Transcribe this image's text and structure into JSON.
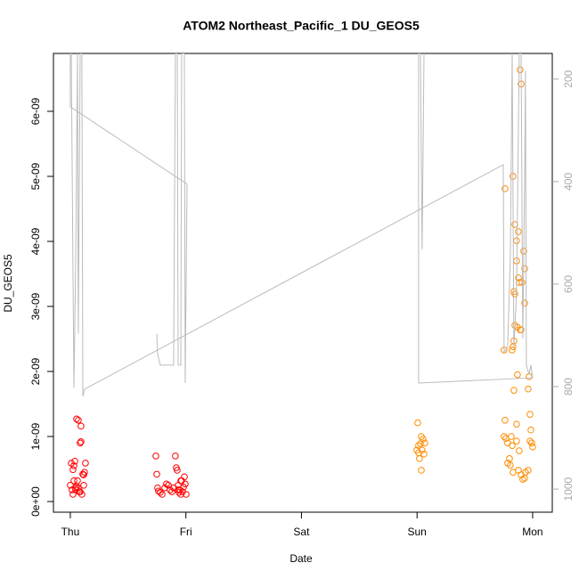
{
  "chart_data": {
    "type": "scatter",
    "title": "ATOM2 Northeast_Pacific_1 DU_GEOS5",
    "x_label": "Date",
    "y_label": "DU_GEOS5",
    "xlim": [
      -0.146,
      4.17
    ],
    "ylim": [
      -1.64e-10,
      6.89e-09
    ],
    "y2lim": [
      1045,
      150
    ],
    "xticks": [
      {
        "value": 0,
        "label": "Thu"
      },
      {
        "value": 1,
        "label": "Fri"
      },
      {
        "value": 2,
        "label": "Sat"
      },
      {
        "value": 3,
        "label": "Sun"
      },
      {
        "value": 4,
        "label": "Mon"
      }
    ],
    "yticks": [
      {
        "value": 0,
        "label": "0e+00"
      },
      {
        "value": 1e-09,
        "label": "1e-09"
      },
      {
        "value": 2e-09,
        "label": "2e-09"
      },
      {
        "value": 3e-09,
        "label": "3e-09"
      },
      {
        "value": 4e-09,
        "label": "4e-09"
      },
      {
        "value": 5e-09,
        "label": "5e-09"
      },
      {
        "value": 6e-09,
        "label": "6e-09"
      }
    ],
    "y2ticks": [
      200,
      400,
      600,
      800,
      1000
    ],
    "y2color": "#aaaaaa",
    "series": [
      {
        "mode": "points",
        "color": "#ff0000",
        "x": [
          0.0,
          0.008,
          0.015,
          0.023,
          0.031,
          0.039,
          0.046,
          0.054,
          0.062,
          0.069,
          0.077,
          0.085,
          0.092,
          0.1,
          0.108,
          0.116,
          0.123,
          0.131,
          0.046,
          0.054,
          0.069,
          0.031,
          0.023,
          0.085,
          0.092,
          0.116,
          0.74,
          0.748,
          0.755,
          0.763,
          0.778,
          0.794,
          0.817,
          0.832,
          0.848,
          0.863,
          0.879,
          0.894,
          0.909,
          0.917,
          0.925,
          0.933,
          0.94,
          0.948,
          0.956,
          0.963,
          0.971,
          0.979,
          0.987,
          0.994,
          1.002,
          0.933,
          0.956
        ],
        "values": [
          2.5e-10,
          5.9e-10,
          1.8e-10,
          1.1e-10,
          5.5e-10,
          6.2e-10,
          2.1e-10,
          1.27e-09,
          3.2e-10,
          1.25e-09,
          1.5e-10,
          9e-10,
          1.16e-09,
          1.1e-10,
          4.2e-10,
          2.5e-10,
          4.5e-10,
          5.9e-10,
          1.8e-10,
          2.3e-10,
          2.1e-10,
          3.2e-10,
          4.9e-10,
          1.5e-10,
          9.2e-10,
          4.1e-10,
          7e-10,
          4.2e-10,
          2.1e-10,
          1.6e-10,
          1.4e-10,
          1.1e-10,
          2.1e-10,
          2.7e-10,
          2.5e-10,
          1.8e-10,
          1.5e-10,
          2.1e-10,
          7e-10,
          5.2e-10,
          4.8e-10,
          2.5e-10,
          1.4e-10,
          1.8e-10,
          1.1e-10,
          3.2e-10,
          1.5e-10,
          2.2e-10,
          3.8e-10,
          2.7e-10,
          1.1e-10,
          1.8e-10,
          3.2e-10
        ]
      },
      {
        "mode": "points",
        "color": "#ff8c00",
        "x": [
          2.998,
          3.006,
          3.013,
          3.021,
          3.029,
          3.037,
          3.044,
          3.052,
          3.06,
          3.067,
          3.013,
          3.037,
          3.761,
          3.83,
          3.846,
          3.861,
          3.877,
          3.892,
          3.9,
          3.923,
          3.931,
          3.861,
          3.877,
          3.884,
          3.908,
          3.838,
          3.846,
          3.931,
          3.846,
          3.869,
          3.892,
          3.9,
          3.753,
          3.823,
          3.838,
          3.83,
          3.869,
          3.969,
          3.838,
          3.961,
          3.977,
          3.761,
          3.861,
          3.985,
          3.769,
          3.784,
          3.861,
          3.992,
          3.823,
          3.884,
          4.0,
          3.8,
          3.784,
          3.807,
          3.83,
          3.877,
          3.9,
          3.915,
          3.938,
          3.931,
          3.961,
          3.977,
          3.815,
          3.753
        ],
        "values": [
          7.9e-10,
          1.21e-09,
          8.6e-10,
          6.6e-10,
          8.9e-10,
          4.8e-10,
          7.9e-10,
          9.6e-10,
          7.3e-10,
          9e-10,
          7.5e-10,
          1e-09,
          4.81e-09,
          5e-09,
          4.26e-09,
          4.01e-09,
          4.15e-09,
          6.64e-09,
          6.42e-09,
          3.85e-09,
          3.58e-09,
          3.7e-09,
          3.44e-09,
          3.37e-09,
          3.37e-09,
          3.23e-09,
          3.19e-09,
          3.05e-09,
          2.71e-09,
          2.68e-09,
          2.64e-09,
          2.64e-09,
          2.33e-09,
          2.33e-09,
          2.47e-09,
          2.38e-09,
          1.95e-09,
          1.92e-09,
          1.71e-09,
          1.73e-09,
          1.34e-09,
          1.25e-09,
          1.19e-09,
          1.1e-09,
          9.7e-10,
          9e-10,
          9.3e-10,
          9e-10,
          8.6e-10,
          7.8e-10,
          8.4e-10,
          6.6e-10,
          5.9e-10,
          5.6e-10,
          4.5e-10,
          4.8e-10,
          4.1e-10,
          3.4e-10,
          4.5e-10,
          3.6e-10,
          4.8e-10,
          9.3e-10,
          1e-09,
          1e-09
        ]
      },
      {
        "mode": "line",
        "axis": "y2",
        "color": "#bbbbbb",
        "x": [
          0.748,
          0.755,
          0.778,
          0.894,
          0.909,
          0.925,
          0.933,
          0.956,
          0.963,
          0.987,
          0.994,
          1.01,
          0.0,
          0.0,
          0.008,
          0.031,
          0.046,
          0.062,
          0.069,
          0.085,
          0.1,
          0.108,
          0.123,
          3.746,
          3.753,
          3.784,
          3.807,
          3.823,
          3.838,
          3.861,
          3.884,
          3.9,
          3.915,
          3.931,
          3.938,
          3.946,
          3.969,
          3.985,
          4.0,
          3.013,
          3.013,
          3.029,
          3.044,
          3.06
        ],
        "values": [
          697,
          736,
          758,
          758,
          150,
          150,
          758,
          758,
          150,
          150,
          793,
          405,
          254,
          150,
          150,
          802,
          567,
          150,
          697,
          150,
          150,
          819,
          805,
          367,
          732,
          723,
          550,
          150,
          723,
          619,
          150,
          150,
          706,
          393,
          184,
          758,
          776,
          758,
          783,
          793,
          150,
          150,
          532,
          150
        ]
      }
    ]
  }
}
